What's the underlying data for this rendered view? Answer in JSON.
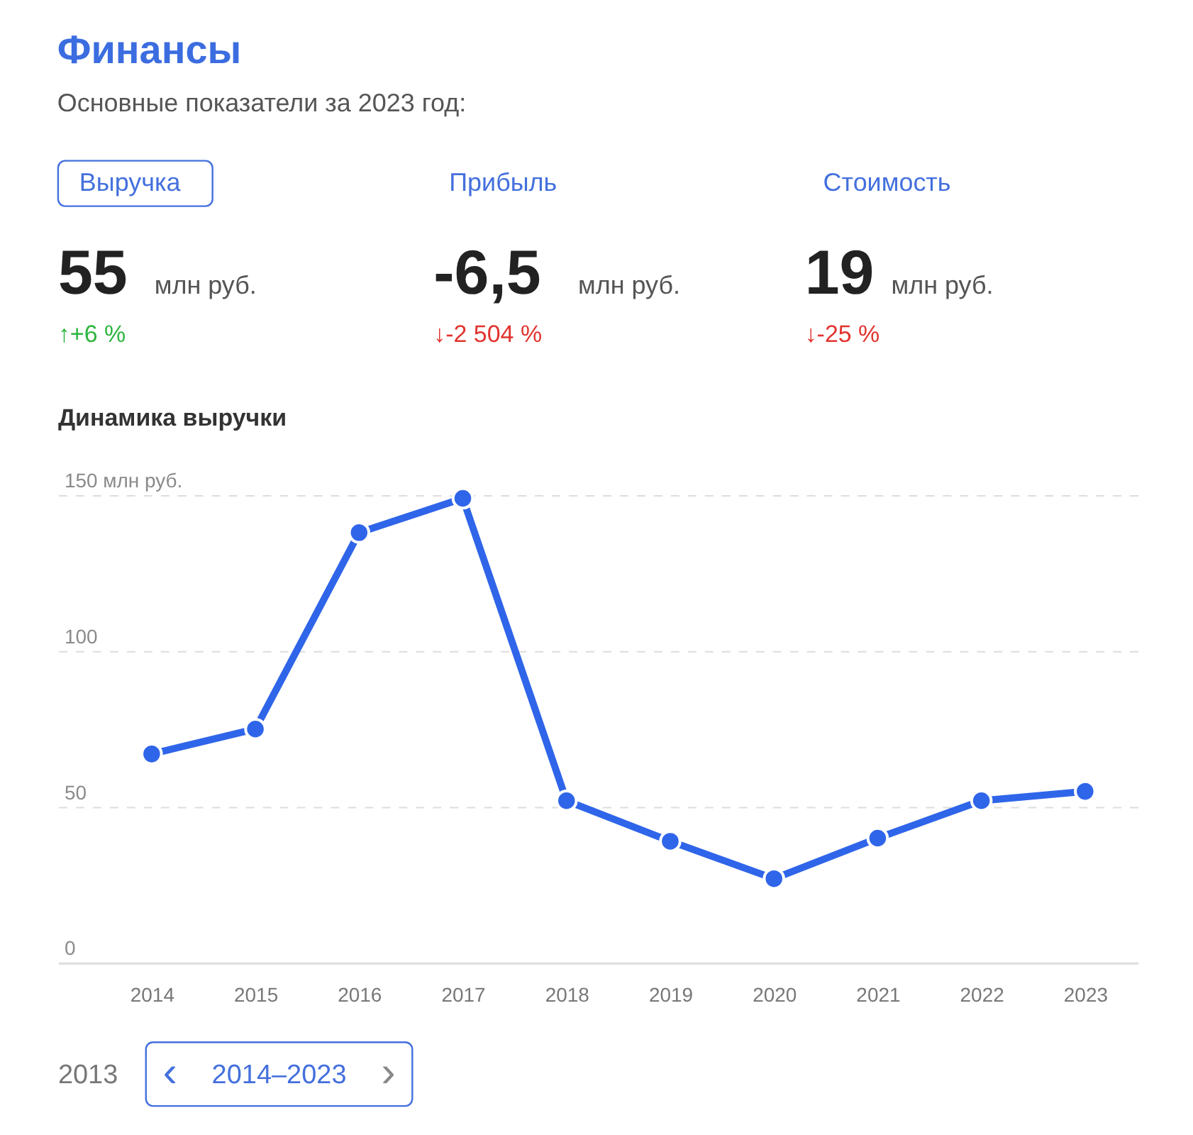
{
  "chart_data": [
    {
      "type": "other",
      "title": "Финансы",
      "subtitle": "Основные показатели за 2023 год:",
      "annotations": [
        "Выручка",
        "Прибыль",
        "Стоимость",
        "55",
        "млн руб.",
        "-6,5",
        "млн руб.",
        "19",
        "млн руб.",
        "↑+6 %",
        "↓-2 504 %",
        "↓-25 %"
      ]
    },
    {
      "type": "line",
      "title": "Динамика выручки",
      "categories": [
        "2014",
        "2015",
        "2016",
        "2017",
        "2018",
        "2019",
        "2020",
        "2021",
        "2022",
        "2023"
      ],
      "series": [
        {
          "color": "#2f65e9",
          "values": [
            67,
            75,
            138,
            149,
            52,
            39,
            27,
            40,
            52,
            55
          ]
        }
      ],
      "ylim": [
        0,
        150
      ],
      "yticks": [
        0,
        50,
        100,
        {
          "value": 150,
          "label": "150 млн руб."
        }
      ],
      "grid": "y",
      "marker": "circle",
      "line_style": "solid"
    },
    {
      "type": "other",
      "annotations": [
        "2013",
        "‹",
        "2014–2023",
        "›"
      ]
    }
  ]
}
